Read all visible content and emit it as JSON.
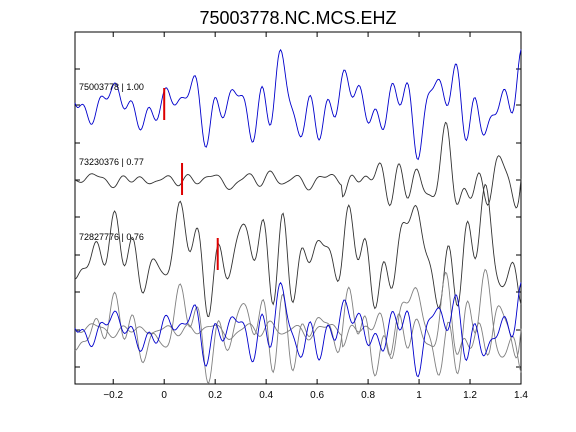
{
  "chart_data": {
    "type": "line",
    "title": "75003778.NC.MCS.EHZ",
    "xlabel": "",
    "ylabel": "",
    "xlim": [
      -0.35,
      1.4
    ],
    "x_ticks": [
      -0.2,
      0,
      0.2,
      0.4,
      0.6,
      0.8,
      1,
      1.2,
      1.4
    ],
    "x_tick_labels": [
      "−0.2",
      "0",
      "0.2",
      "0.4",
      "0.6",
      "0.8",
      "1",
      "1.2",
      "1.4"
    ],
    "y_axis_tick_labels_shown": false,
    "grid": false,
    "legend": "none",
    "colors": {
      "primary_trace": "#0000cc",
      "secondary_trace": "#333333",
      "overlay_trace": "#808080",
      "pick_marker": "#dd0000"
    },
    "traces": [
      {
        "label": "75003778 | 1.00",
        "pick_time": 0.0,
        "color": "#0000cc"
      },
      {
        "label": "73230376 | 0.77",
        "pick_time": 0.07,
        "color": "#333333"
      },
      {
        "label": "72827776 | 0.76",
        "pick_time": 0.21,
        "color": "#333333"
      }
    ],
    "overlay": {
      "label": "",
      "description_count": 3
    }
  }
}
